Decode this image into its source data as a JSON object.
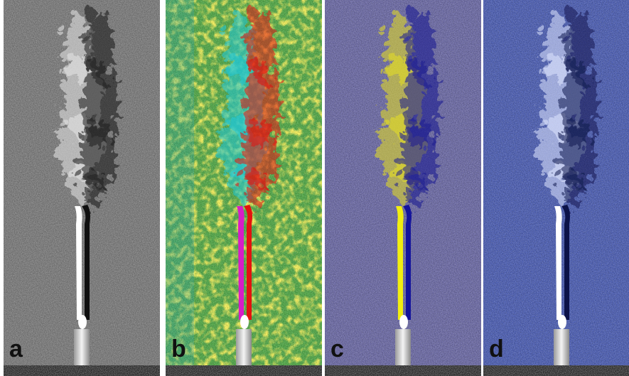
{
  "panels": [
    {
      "label": "a"
    },
    {
      "label": "b"
    },
    {
      "label": "c"
    },
    {
      "label": "d"
    }
  ]
}
